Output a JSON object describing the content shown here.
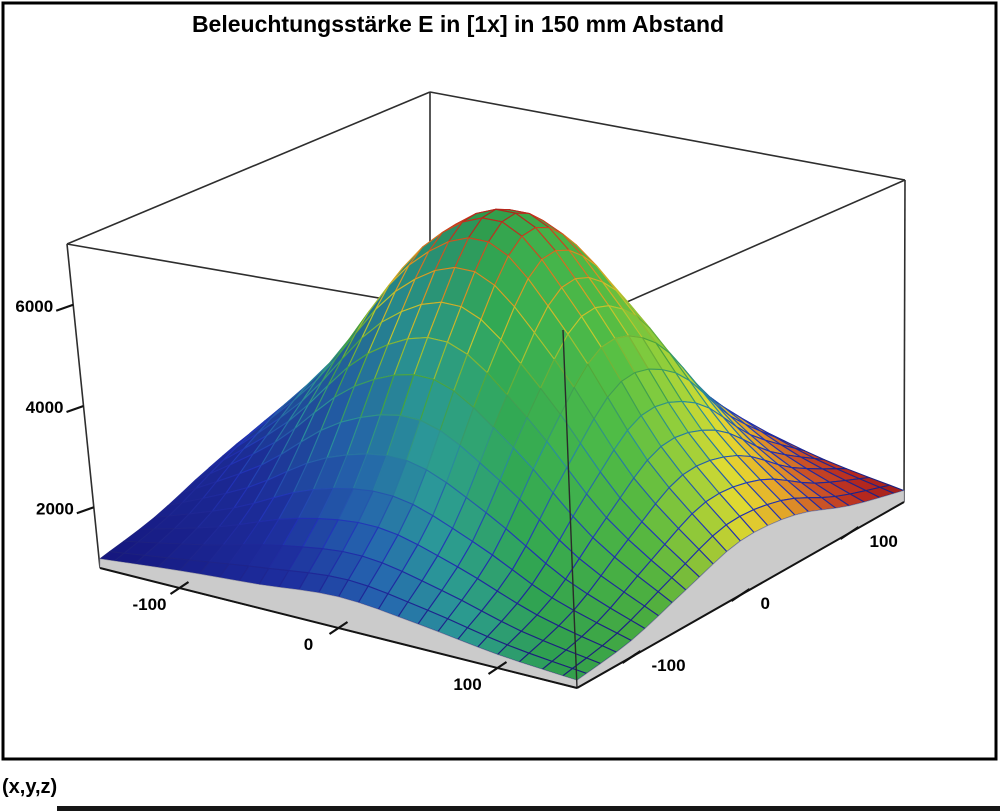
{
  "title": "Beleuchtungsstärke E in [1x] in 150 mm Abstand",
  "footer_label": "(x,y,z)",
  "axes": {
    "z_ticks": [
      2000,
      4000,
      6000
    ],
    "x_ticks": [
      -100,
      0,
      100
    ],
    "y_ticks": [
      -100,
      0,
      100
    ]
  },
  "chart_data": {
    "type": "surface",
    "title": "Beleuchtungsstärke E in [1x] in 150 mm Abstand",
    "xlabel": "",
    "ylabel": "",
    "zlabel": "",
    "x": [
      -150,
      -100,
      -50,
      0,
      50,
      100,
      150
    ],
    "y": [
      -150,
      -100,
      -50,
      0,
      50,
      100,
      150
    ],
    "z": [
      [
        980,
        1140,
        1265,
        1415,
        1270,
        1065,
        950
      ],
      [
        1185,
        1770,
        2530,
        2795,
        2295,
        1575,
        1125
      ],
      [
        1550,
        2870,
        4605,
        5225,
        4130,
        2545,
        1510
      ],
      [
        1810,
        3665,
        6095,
        6990,
        5515,
        3340,
        1865
      ],
      [
        1690,
        3295,
        5395,
        6175,
        4915,
        3050,
        1765
      ],
      [
        1320,
        2180,
        3300,
        3710,
        3020,
        2015,
        1335
      ],
      [
        1040,
        1320,
        1690,
        1815,
        1585,
        1240,
        1025
      ]
    ],
    "z_unit": "lx",
    "zlim": [
      800,
      7200
    ],
    "z_axis_ticks": [
      2000,
      4000,
      6000
    ],
    "x_axis_ticks": [
      -100,
      0,
      100
    ],
    "y_axis_ticks": [
      -100,
      0,
      100
    ],
    "peak_value": 6990,
    "face_color_by": "x_plus_y_diagonal",
    "edge_color_by": "z_height",
    "colormap_faces": [
      [
        0.0,
        "#15157d"
      ],
      [
        0.2,
        "#1e2ea0"
      ],
      [
        0.3,
        "#2565ae"
      ],
      [
        0.38,
        "#2a9693"
      ],
      [
        0.48,
        "#2f9e4e"
      ],
      [
        0.62,
        "#4aa93d"
      ],
      [
        0.7,
        "#8cbc34"
      ],
      [
        0.76,
        "#d3cb2e"
      ],
      [
        0.82,
        "#d89a26"
      ],
      [
        0.88,
        "#c24e26"
      ],
      [
        0.94,
        "#b3281e"
      ],
      [
        1.0,
        "#9c1d1a"
      ]
    ],
    "colormap_edges": [
      [
        0.0,
        "#1b1b6e"
      ],
      [
        0.2,
        "#2233b8"
      ],
      [
        0.4,
        "#2a8f9a"
      ],
      [
        0.55,
        "#46a43c"
      ],
      [
        0.68,
        "#c3c92e"
      ],
      [
        0.8,
        "#db9422"
      ],
      [
        0.92,
        "#c53420"
      ],
      [
        1.0,
        "#a01818"
      ]
    ],
    "skirt_color": "#cbcbcb",
    "frame_color": "#000000",
    "grid": false,
    "legend": "none"
  }
}
